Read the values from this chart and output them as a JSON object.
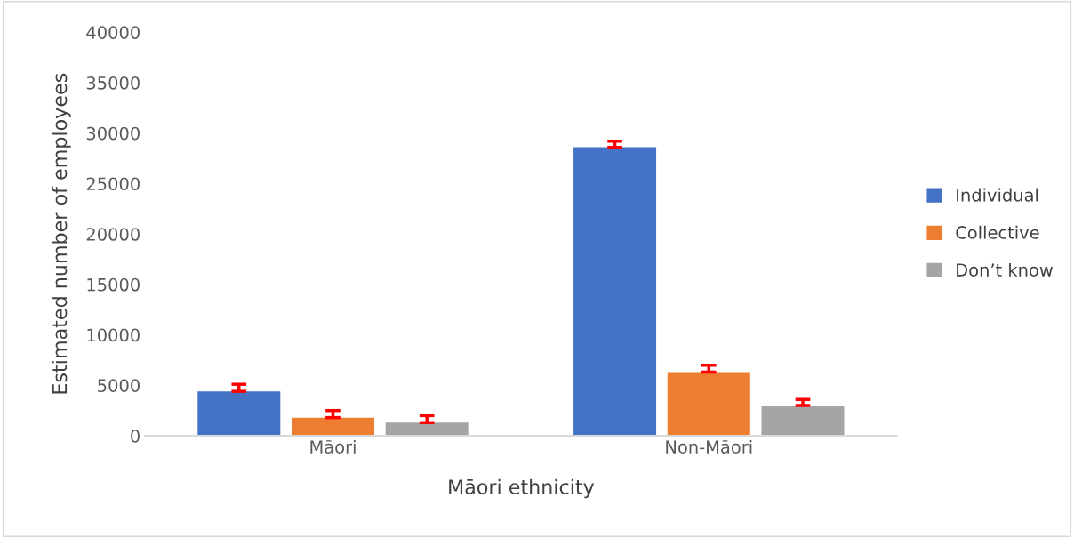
{
  "chart_data": {
    "type": "bar",
    "xlabel": "Māori ethnicity",
    "ylabel": "Estimated number of employees",
    "categories": [
      "Māori",
      "Non-Māori"
    ],
    "series": [
      {
        "name": "Individual",
        "color": "#4472c4",
        "values": [
          4400,
          28600
        ],
        "errors": [
          [
            4400,
            5100
          ],
          [
            28600,
            29200
          ]
        ]
      },
      {
        "name": "Collective",
        "color": "#ed7d31",
        "values": [
          1800,
          6300
        ],
        "errors": [
          [
            1800,
            2500
          ],
          [
            6300,
            7000
          ]
        ]
      },
      {
        "name": "Don’t know",
        "color": "#a5a5a5",
        "values": [
          1300,
          3000
        ],
        "errors": [
          [
            1300,
            2000
          ],
          [
            3000,
            3600
          ]
        ]
      }
    ],
    "ylim": [
      0,
      40000
    ],
    "yticks": [
      0,
      5000,
      10000,
      15000,
      20000,
      25000,
      30000,
      35000,
      40000
    ],
    "grid": false,
    "legend": "right"
  }
}
